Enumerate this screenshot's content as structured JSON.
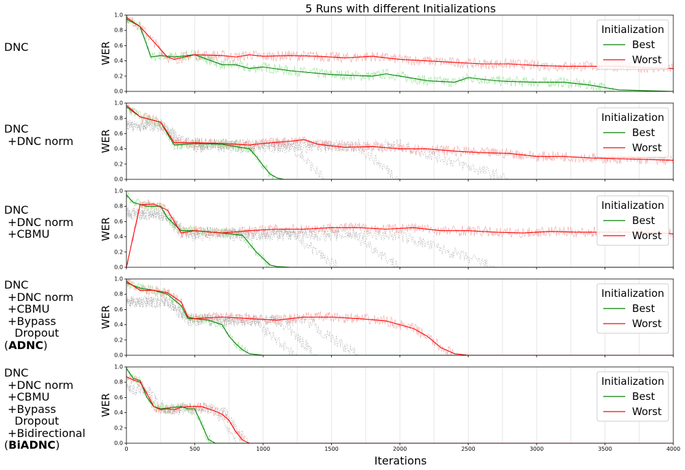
{
  "chart_data": {
    "title": "5 Runs with different Initializations",
    "xlabel": "Iterations",
    "ylabel": "WER",
    "xlim": [
      0,
      4000
    ],
    "ylim": [
      0,
      1.0
    ],
    "xticks": [
      "0",
      "500",
      "1000",
      "1500",
      "2000",
      "2500",
      "3000",
      "3500",
      "4000"
    ],
    "yticks": [
      "0.0",
      "0.2",
      "0.4",
      "0.6",
      "0.8",
      "1.0"
    ],
    "legend": {
      "title": "Initialization",
      "placement": "top-right",
      "entries": [
        {
          "name": "Best",
          "color": "#008000"
        },
        {
          "name": "Worst",
          "color": "#ff0000"
        }
      ]
    },
    "panels": [
      {
        "label_lines": [
          "DNC"
        ],
        "type": "line",
        "series": [
          {
            "name": "Best",
            "color": "#008000",
            "x": [
              0,
              100,
              180,
              250,
              350,
              500,
              700,
              800,
              900,
              1000,
              1200,
              1500,
              1800,
              1900,
              2000,
              2100,
              2200,
              2400,
              2500,
              2700,
              2800,
              3000,
              3200,
              3400,
              3500,
              3600,
              3800,
              4000
            ],
            "y": [
              0.95,
              0.85,
              0.45,
              0.47,
              0.45,
              0.48,
              0.35,
              0.35,
              0.3,
              0.32,
              0.27,
              0.22,
              0.2,
              0.23,
              0.2,
              0.17,
              0.14,
              0.12,
              0.18,
              0.14,
              0.13,
              0.12,
              0.12,
              0.08,
              0.05,
              0.02,
              0.01,
              0.0
            ]
          },
          {
            "name": "Worst",
            "color": "#ff0000",
            "x": [
              0,
              100,
              200,
              300,
              350,
              500,
              700,
              800,
              900,
              1000,
              1200,
              1400,
              1600,
              1800,
              2000,
              2200,
              2400,
              2600,
              2800,
              3000,
              3200,
              3400,
              3600,
              3800,
              4000
            ],
            "y": [
              0.97,
              0.85,
              0.65,
              0.45,
              0.42,
              0.48,
              0.47,
              0.45,
              0.48,
              0.46,
              0.47,
              0.46,
              0.44,
              0.46,
              0.42,
              0.4,
              0.38,
              0.36,
              0.36,
              0.34,
              0.33,
              0.33,
              0.33,
              0.31,
              0.3
            ]
          }
        ],
        "grey_drops": []
      },
      {
        "label_lines": [
          "DNC",
          " +DNC norm"
        ],
        "type": "line",
        "series": [
          {
            "name": "Best",
            "color": "#008000",
            "x": [
              0,
              100,
              250,
              350,
              500,
              700,
              800,
              900,
              950,
              1000,
              1050,
              1100,
              1150,
              1200,
              4000
            ],
            "y": [
              0.95,
              0.82,
              0.75,
              0.45,
              0.47,
              0.46,
              0.43,
              0.4,
              0.3,
              0.18,
              0.07,
              0.02,
              0.0,
              0.0,
              0.0
            ]
          },
          {
            "name": "Worst",
            "color": "#ff0000",
            "x": [
              0,
              100,
              250,
              350,
              500,
              700,
              900,
              1000,
              1200,
              1300,
              1400,
              1600,
              1800,
              2000,
              2200,
              2400,
              2600,
              2800,
              3000,
              3200,
              3400,
              3600,
              3800,
              4000
            ],
            "y": [
              0.97,
              0.82,
              0.75,
              0.48,
              0.48,
              0.47,
              0.45,
              0.47,
              0.5,
              0.52,
              0.46,
              0.42,
              0.43,
              0.4,
              0.4,
              0.37,
              0.35,
              0.34,
              0.3,
              0.3,
              0.28,
              0.27,
              0.26,
              0.25
            ]
          }
        ],
        "grey_drops": [
          {
            "x": [
              250,
              350,
              1200,
              1450
            ],
            "y": [
              0.7,
              0.45,
              0.45,
              0.0
            ]
          },
          {
            "x": [
              250,
              500,
              1700,
              2000
            ],
            "y": [
              0.7,
              0.42,
              0.42,
              0.0
            ]
          },
          {
            "x": [
              250,
              500,
              2000,
              2800
            ],
            "y": [
              0.7,
              0.45,
              0.45,
              0.0
            ]
          }
        ]
      },
      {
        "label_lines": [
          "DNC",
          " +DNC norm",
          " +CBMU"
        ],
        "type": "line",
        "series": [
          {
            "name": "Best",
            "color": "#008000",
            "x": [
              0,
              50,
              150,
              250,
              300,
              400,
              500,
              700,
              850,
              950,
              1050,
              1100,
              1200,
              4000
            ],
            "y": [
              0.95,
              0.85,
              0.8,
              0.8,
              0.65,
              0.48,
              0.48,
              0.45,
              0.42,
              0.2,
              0.03,
              0.01,
              0.0,
              0.0
            ]
          },
          {
            "name": "Worst",
            "color": "#ff0000",
            "x": [
              0,
              100,
              200,
              300,
              400,
              500,
              700,
              900,
              1100,
              1300,
              1500,
              1700,
              1900,
              2100,
              2300,
              2500,
              2700,
              2900,
              3100,
              3300,
              3500,
              3700,
              3900,
              4000
            ],
            "y": [
              0.0,
              0.82,
              0.83,
              0.75,
              0.45,
              0.48,
              0.45,
              0.48,
              0.5,
              0.5,
              0.52,
              0.52,
              0.5,
              0.52,
              0.48,
              0.48,
              0.46,
              0.45,
              0.47,
              0.46,
              0.46,
              0.46,
              0.45,
              0.44
            ]
          }
        ],
        "grey_drops": [
          {
            "x": [
              250,
              400,
              1200,
              1550
            ],
            "y": [
              0.7,
              0.45,
              0.45,
              0.0
            ]
          },
          {
            "x": [
              250,
              450,
              1650,
              2000
            ],
            "y": [
              0.7,
              0.45,
              0.45,
              0.0
            ]
          },
          {
            "x": [
              250,
              450,
              2000,
              2700
            ],
            "y": [
              0.7,
              0.42,
              0.42,
              0.0
            ]
          }
        ]
      },
      {
        "label_lines": [
          "DNC",
          " +DNC norm",
          " +CBMU",
          " +Bypass",
          "   Dropout",
          "(ADNC)"
        ],
        "bold": "ADNC",
        "type": "line",
        "series": [
          {
            "name": "Best",
            "color": "#008000",
            "x": [
              0,
              100,
              200,
              300,
              400,
              450,
              500,
              600,
              700,
              750,
              800,
              850,
              900,
              1000,
              1100,
              4000
            ],
            "y": [
              0.95,
              0.88,
              0.85,
              0.8,
              0.65,
              0.48,
              0.48,
              0.46,
              0.4,
              0.25,
              0.15,
              0.07,
              0.02,
              0.0,
              0.0,
              0.0
            ]
          },
          {
            "name": "Worst",
            "color": "#ff0000",
            "x": [
              0,
              100,
              200,
              300,
              400,
              450,
              500,
              700,
              900,
              1100,
              1300,
              1500,
              1700,
              1900,
              2000,
              2100,
              2200,
              2300,
              2400,
              2500,
              4000
            ],
            "y": [
              0.97,
              0.85,
              0.85,
              0.82,
              0.7,
              0.5,
              0.48,
              0.5,
              0.48,
              0.46,
              0.5,
              0.5,
              0.48,
              0.45,
              0.4,
              0.35,
              0.25,
              0.1,
              0.02,
              0.0,
              0.0
            ]
          }
        ],
        "grey_drops": [
          {
            "x": [
              300,
              450,
              900,
              1250
            ],
            "y": [
              0.7,
              0.48,
              0.48,
              0.0
            ]
          },
          {
            "x": [
              300,
              450,
              1100,
              1400
            ],
            "y": [
              0.7,
              0.46,
              0.46,
              0.0
            ]
          },
          {
            "x": [
              300,
              500,
              1300,
              1700
            ],
            "y": [
              0.7,
              0.45,
              0.45,
              0.0
            ]
          }
        ]
      },
      {
        "label_lines": [
          "DNC",
          " +DNC norm",
          " +CBMU",
          " +Bypass",
          "   Dropout",
          " +Bidirectional",
          "(BiADNC)"
        ],
        "bold": "BiADNC",
        "type": "line",
        "series": [
          {
            "name": "Best",
            "color": "#008000",
            "x": [
              0,
              50,
              100,
              150,
              200,
              250,
              300,
              350,
              400,
              450,
              500,
              550,
              600,
              650,
              700,
              4000
            ],
            "y": [
              0.98,
              0.85,
              0.82,
              0.6,
              0.48,
              0.45,
              0.46,
              0.47,
              0.48,
              0.45,
              0.45,
              0.25,
              0.05,
              0.0,
              0.0,
              0.0
            ]
          },
          {
            "name": "Worst",
            "color": "#ff0000",
            "x": [
              0,
              50,
              100,
              150,
              200,
              250,
              300,
              350,
              400,
              450,
              550,
              650,
              700,
              750,
              800,
              850,
              900,
              4000
            ],
            "y": [
              0.87,
              0.83,
              0.8,
              0.65,
              0.48,
              0.44,
              0.45,
              0.44,
              0.47,
              0.48,
              0.48,
              0.42,
              0.38,
              0.3,
              0.15,
              0.04,
              0.0,
              0.0
            ]
          }
        ],
        "grey_drops": [
          {
            "x": [
              150,
              250,
              650,
              800
            ],
            "y": [
              0.7,
              0.45,
              0.45,
              0.0
            ]
          },
          {
            "x": [
              150,
              300,
              700,
              900
            ],
            "y": [
              0.7,
              0.45,
              0.45,
              0.0
            ]
          }
        ]
      }
    ]
  }
}
